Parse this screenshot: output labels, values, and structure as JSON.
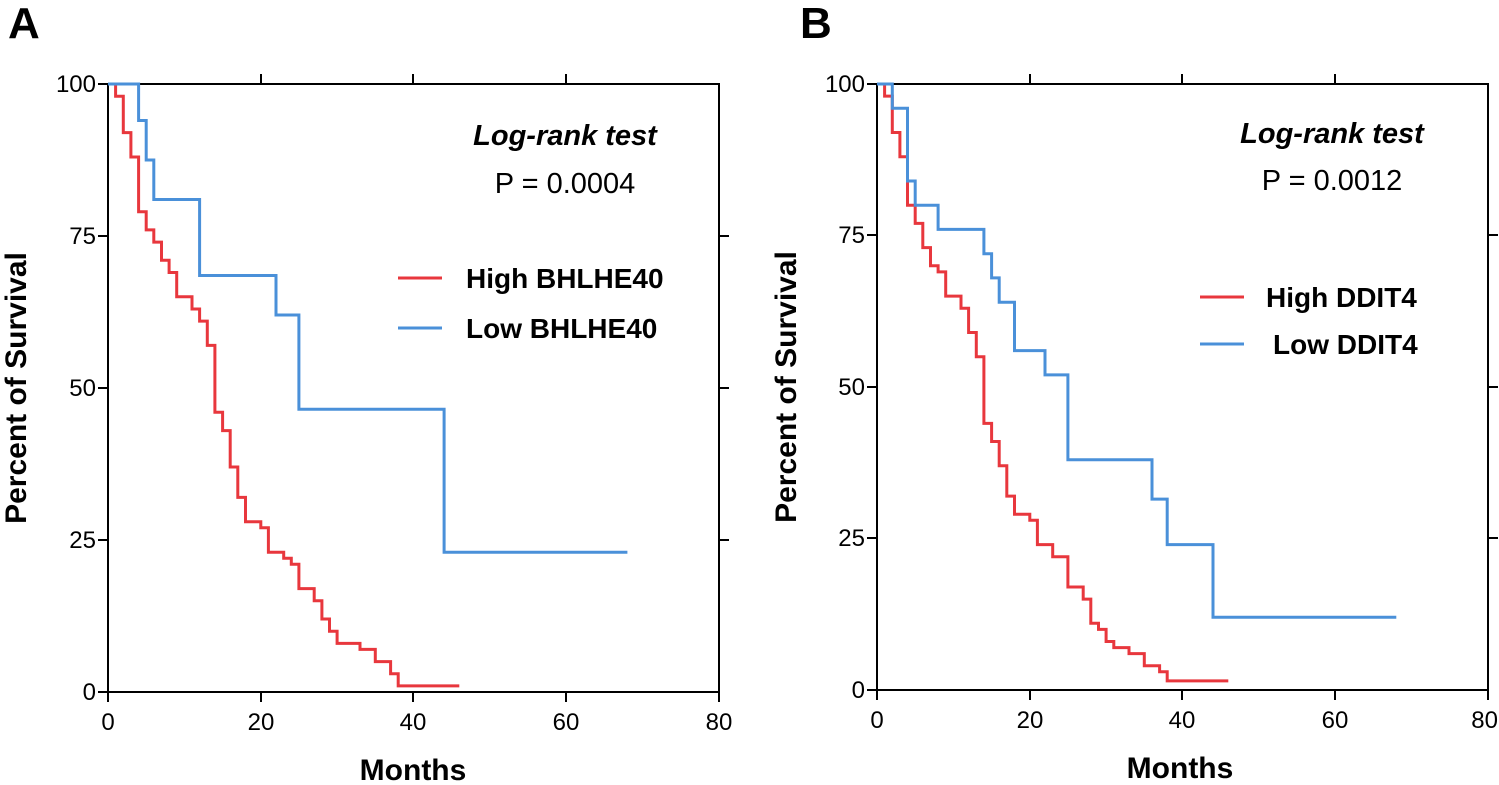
{
  "chart_data": [
    {
      "type": "line",
      "panel_label": "A",
      "xlabel": "Months",
      "ylabel": "Percent of Survival",
      "xlim": [
        0,
        80
      ],
      "ylim": [
        0,
        100
      ],
      "xticks": [
        0,
        20,
        40,
        60,
        80
      ],
      "yticks": [
        0,
        25,
        50,
        75,
        100
      ],
      "stat_test": "Log-rank test",
      "p_value": "P = 0.0004",
      "legend_position": "right",
      "series": [
        {
          "name": "High BHLHE40",
          "color": "#e8373d",
          "x": [
            0,
            1,
            2,
            3,
            4,
            5,
            6,
            7,
            8,
            9,
            11,
            12,
            13,
            14,
            15,
            16,
            17,
            18,
            20,
            21,
            23,
            24,
            25,
            27,
            28,
            29,
            30,
            31,
            33,
            35,
            37,
            38,
            46
          ],
          "y": [
            100,
            98,
            92,
            88,
            79,
            76,
            74,
            71,
            69,
            65,
            63,
            61,
            57,
            46,
            43,
            37,
            32,
            28,
            27,
            23,
            22,
            21,
            17,
            15,
            12,
            10,
            8,
            8,
            7,
            5,
            3,
            1,
            1
          ]
        },
        {
          "name": "Low BHLHE40",
          "color": "#4a90d9",
          "x": [
            0,
            4,
            5,
            6,
            12,
            22,
            25,
            44,
            68
          ],
          "y": [
            100,
            94,
            87.5,
            81,
            68.5,
            62,
            46.5,
            23,
            23
          ]
        }
      ]
    },
    {
      "type": "line",
      "panel_label": "B",
      "xlabel": "Months",
      "ylabel": "Percent of Survival",
      "xlim": [
        0,
        80
      ],
      "ylim": [
        0,
        100
      ],
      "xticks": [
        0,
        20,
        40,
        60,
        80
      ],
      "yticks": [
        0,
        25,
        50,
        75,
        100
      ],
      "stat_test": "Log-rank test",
      "p_value": "P = 0.0012",
      "legend_position": "right",
      "series": [
        {
          "name": "High DDIT4",
          "color": "#e8373d",
          "x": [
            0,
            1,
            2,
            3,
            4,
            5,
            6,
            7,
            8,
            9,
            11,
            12,
            13,
            14,
            15,
            16,
            17,
            18,
            20,
            21,
            23,
            24,
            25,
            27,
            28,
            29,
            30,
            31,
            33,
            35,
            37,
            38,
            46
          ],
          "y": [
            100,
            98,
            92,
            88,
            80,
            77,
            73,
            70,
            69,
            65,
            63,
            59,
            55,
            44,
            41,
            37,
            32,
            29,
            28,
            24,
            22,
            22,
            17,
            15,
            11,
            10,
            8,
            7,
            6,
            4,
            3,
            1.5,
            1.5
          ]
        },
        {
          "name": "Low DDIT4",
          "color": "#4a90d9",
          "x": [
            0,
            2,
            4,
            5,
            8,
            14,
            15,
            16,
            18,
            22,
            25,
            36,
            38,
            44,
            68
          ],
          "y": [
            100,
            96,
            84,
            80,
            76,
            72,
            68,
            64,
            56,
            52,
            38,
            31.5,
            24,
            12,
            12
          ]
        }
      ]
    }
  ]
}
